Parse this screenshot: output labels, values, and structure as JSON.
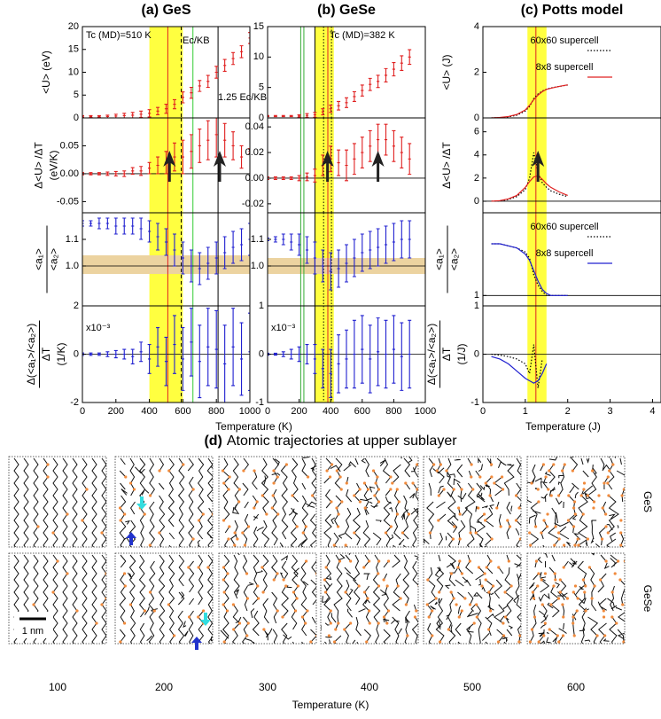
{
  "chart_data": [
    {
      "type": "errorbar",
      "title": "(a) GeS",
      "ylabel": [
        "<U> (eV)"
      ],
      "color": "#e02020",
      "x": [
        0,
        50,
        100,
        150,
        200,
        250,
        300,
        350,
        400,
        450,
        500,
        550,
        600,
        650,
        700,
        750,
        800,
        850,
        900,
        950,
        1000
      ],
      "values": [
        0.3,
        0.3,
        0.3,
        0.3,
        0.4,
        0.5,
        0.6,
        0.8,
        1.0,
        1.5,
        2.0,
        3.0,
        4.5,
        5.5,
        7,
        8,
        10,
        11.5,
        13,
        14.5,
        17.5
      ],
      "errors": [
        0.2,
        0.2,
        0.2,
        0.3,
        0.4,
        0.5,
        0.6,
        0.7,
        0.8,
        0.8,
        1,
        1,
        1.2,
        1.2,
        1.2,
        1.3,
        1.3,
        1.3,
        1.3,
        1.3,
        1.2
      ],
      "xlim": [
        0,
        1000
      ],
      "ylim": [
        0,
        20
      ],
      "yticks": [
        0,
        5,
        10,
        15,
        20
      ],
      "band": [
        400,
        600
      ],
      "lines": [
        {
          "x": 510,
          "color": "#e02020",
          "style": "solid"
        },
        {
          "x": 590,
          "color": "#000000",
          "style": "dashed"
        },
        {
          "x": 660,
          "color": "#33cc33",
          "style": "solid"
        },
        {
          "x": 810,
          "color": "#000000",
          "style": "solid"
        }
      ],
      "annotations": [
        {
          "text": "Tc (MD)=510 K",
          "color": "#e02020"
        },
        {
          "text": "Ec/KB",
          "color": "#33bb33"
        },
        {
          "text": "1.25 Ec/KB",
          "color": "#000000"
        }
      ]
    },
    {
      "type": "errorbar",
      "ylabel": [
        "Δ<U> /ΔT",
        "(eV/K)"
      ],
      "color": "#e02020",
      "x": [
        0,
        50,
        100,
        150,
        200,
        250,
        300,
        350,
        400,
        450,
        500,
        550,
        600,
        650,
        700,
        750,
        800,
        850,
        900,
        950,
        1000
      ],
      "values": [
        0,
        0,
        0,
        0,
        0,
        0,
        0.005,
        0.005,
        0.01,
        0.015,
        0.02,
        0.03,
        0.03,
        0.04,
        0.05,
        0.06,
        0.07,
        0.06,
        0.05,
        0.03,
        0.04
      ],
      "errors": [
        0.002,
        0.002,
        0.002,
        0.003,
        0.004,
        0.005,
        0.006,
        0.008,
        0.01,
        0.015,
        0.02,
        0.025,
        0.03,
        0.03,
        0.03,
        0.035,
        0.04,
        0.03,
        0.025,
        0.02,
        0.005
      ],
      "xlim": [
        0,
        1000
      ],
      "ylim": [
        -0.07,
        0.1
      ],
      "yticks": [
        {
          "value": -0.05,
          "label": "-0.05"
        },
        {
          "value": 0,
          "label": "0.00"
        },
        {
          "value": 0.05,
          "label": "0.05"
        }
      ],
      "hline": 0,
      "arrows": [
        520,
        820
      ]
    },
    {
      "type": "errorbar",
      "ylabel": [
        "<a₁>",
        "<a₂>"
      ],
      "ylabel_fraction": true,
      "color": "#2020d0",
      "x": [
        0,
        50,
        100,
        150,
        200,
        250,
        300,
        350,
        400,
        450,
        500,
        550,
        600,
        650,
        700,
        750,
        800,
        850,
        900,
        950,
        1000
      ],
      "values": [
        1.16,
        1.16,
        1.16,
        1.16,
        1.15,
        1.15,
        1.15,
        1.14,
        1.13,
        1.11,
        1.09,
        1.06,
        1.03,
        1.0,
        0.99,
        1.01,
        1.03,
        1.05,
        1.07,
        1.08,
        1.1
      ],
      "errors": [
        0.01,
        0.01,
        0.02,
        0.02,
        0.03,
        0.03,
        0.03,
        0.04,
        0.04,
        0.05,
        0.05,
        0.06,
        0.06,
        0.06,
        0.06,
        0.06,
        0.06,
        0.06,
        0.06,
        0.06,
        0.06
      ],
      "xlim": [
        0,
        1000
      ],
      "ylim": [
        0.85,
        1.2
      ],
      "yticks": [
        {
          "value": 1,
          "label": "1.0"
        },
        1.1
      ],
      "hline": 1,
      "band_y": [
        0.97,
        1.04
      ]
    },
    {
      "type": "errorbar",
      "ylabel": [
        "Δ(<a₁>/<a₂>)",
        "ΔT",
        "(1/K)"
      ],
      "ylabel_fraction": true,
      "color": "#2020d0",
      "x": [
        0,
        50,
        100,
        150,
        200,
        250,
        300,
        350,
        400,
        450,
        500,
        550,
        600,
        650,
        700,
        750,
        800,
        850,
        900,
        950,
        1000
      ],
      "values": [
        0,
        0,
        0,
        0,
        0,
        0,
        -0.1,
        0.1,
        -0.2,
        0.3,
        -0.3,
        0.4,
        -0.2,
        0.5,
        -0.3,
        0.3,
        0.2,
        -0.4,
        0.3,
        -0.2,
        0.1
      ],
      "errors": [
        0.05,
        0.05,
        0.05,
        0.1,
        0.15,
        0.2,
        0.3,
        0.4,
        0.6,
        0.8,
        1,
        1.2,
        1.3,
        1.4,
        1.5,
        1.6,
        1.6,
        1.6,
        1.6,
        1.5,
        1.6
      ],
      "xlim": [
        0,
        1000
      ],
      "ylim": [
        -2,
        2
      ],
      "yticks": [
        -2,
        0,
        2
      ],
      "xticks": [
        0,
        200,
        400,
        600,
        800,
        1000
      ],
      "hline": 0,
      "annotations": [
        {
          "text": "x10⁻³",
          "color": "#000000"
        }
      ],
      "xlabel": "Temperature (K)"
    },
    {
      "type": "errorbar",
      "title": "(b) GeSe",
      "color": "#e02020",
      "x": [
        0,
        50,
        100,
        150,
        200,
        250,
        300,
        350,
        400,
        450,
        500,
        550,
        600,
        650,
        700,
        750,
        800,
        850,
        900
      ],
      "values": [
        0.3,
        0.3,
        0.3,
        0.3,
        0.3,
        0.4,
        0.5,
        1.0,
        1.5,
        2.0,
        2.5,
        3.5,
        4.5,
        5.5,
        6,
        7,
        8,
        9,
        10
      ],
      "errors": [
        0.1,
        0.1,
        0.1,
        0.1,
        0.2,
        0.3,
        0.4,
        0.5,
        0.6,
        0.7,
        0.8,
        0.8,
        0.9,
        1,
        1,
        1.1,
        1.1,
        1.2,
        1.2
      ],
      "xlim": [
        0,
        1000
      ],
      "ylim": [
        0,
        15
      ],
      "yticks": [
        0,
        5,
        10,
        15
      ],
      "band": [
        300,
        420
      ],
      "lines": [
        {
          "x": 210,
          "color": "#33aa33",
          "style": "solid"
        },
        {
          "x": 230,
          "color": "#33aa33",
          "style": "solid"
        },
        {
          "x": 300,
          "color": "#000000",
          "style": "solid"
        },
        {
          "x": 355,
          "color": "#000000",
          "style": "dotted"
        },
        {
          "x": 382,
          "color": "#e02020",
          "style": "solid"
        },
        {
          "x": 405,
          "color": "#000000",
          "style": "dotted"
        }
      ],
      "annotations": [
        {
          "text": "Tc (MD)=382 K",
          "color": "#e02020"
        }
      ]
    },
    {
      "type": "errorbar",
      "color": "#e02020",
      "x": [
        0,
        50,
        100,
        150,
        200,
        250,
        300,
        350,
        400,
        450,
        500,
        550,
        600,
        650,
        700,
        750,
        800,
        850,
        900
      ],
      "values": [
        0,
        0,
        0,
        0,
        0,
        0.001,
        0.002,
        0.01,
        0.015,
        0.012,
        0.01,
        0.015,
        0.02,
        0.025,
        0.03,
        0.03,
        0.025,
        0.02,
        0.015
      ],
      "errors": [
        0.001,
        0.001,
        0.001,
        0.001,
        0.002,
        0.003,
        0.005,
        0.008,
        0.01,
        0.01,
        0.012,
        0.012,
        0.012,
        0.012,
        0.012,
        0.012,
        0.012,
        0.012,
        0.012
      ],
      "xlim": [
        0,
        1000
      ],
      "ylim": [
        -0.027,
        0.047
      ],
      "yticks": [
        {
          "value": -0.02,
          "label": "-0.02"
        },
        {
          "value": 0,
          "label": "0.00"
        },
        {
          "value": 0.02,
          "label": "0.02"
        },
        {
          "value": 0.04,
          "label": "0.04"
        }
      ],
      "hline": 0,
      "arrows": [
        380,
        700
      ]
    },
    {
      "type": "errorbar",
      "color": "#2020d0",
      "x": [
        0,
        50,
        100,
        150,
        200,
        250,
        300,
        350,
        400,
        450,
        500,
        550,
        600,
        650,
        700,
        750,
        800,
        850,
        900
      ],
      "values": [
        1.1,
        1.1,
        1.1,
        1.09,
        1.08,
        1.06,
        1.03,
        1.0,
        0.98,
        0.99,
        1.01,
        1.03,
        1.05,
        1.06,
        1.07,
        1.08,
        1.09,
        1.1,
        1.1
      ],
      "errors": [
        0.005,
        0.01,
        0.02,
        0.03,
        0.04,
        0.05,
        0.06,
        0.06,
        0.07,
        0.07,
        0.07,
        0.07,
        0.07,
        0.07,
        0.07,
        0.07,
        0.07,
        0.07,
        0.07
      ],
      "xlim": [
        0,
        1000
      ],
      "ylim": [
        0.85,
        1.2
      ],
      "yticks": [
        {
          "value": 1,
          "label": "1.0"
        },
        1.1
      ],
      "hline": 1,
      "band_y": [
        0.97,
        1.03
      ]
    },
    {
      "type": "errorbar",
      "color": "#2020d0",
      "x": [
        0,
        50,
        100,
        150,
        200,
        250,
        300,
        350,
        400,
        450,
        500,
        550,
        600,
        650,
        700,
        750,
        800,
        850,
        900
      ],
      "values": [
        0,
        0,
        0,
        0,
        0,
        0,
        -0.1,
        -0.3,
        -0.4,
        -0.2,
        -0.1,
        0,
        0.1,
        -0.1,
        0.05,
        0,
        0.1,
        -0.05,
        0
      ],
      "errors": [
        0.02,
        0.02,
        0.05,
        0.1,
        0.15,
        0.2,
        0.3,
        0.4,
        0.5,
        0.6,
        0.6,
        0.7,
        0.7,
        0.7,
        0.7,
        0.7,
        0.7,
        0.7,
        0.7
      ],
      "xlim": [
        0,
        1000
      ],
      "ylim": [
        -1,
        1
      ],
      "yticks": [
        -1,
        0,
        1
      ],
      "xticks": [
        0,
        200,
        400,
        600,
        800,
        1000
      ],
      "hline": 0,
      "annotations": [
        {
          "text": "x10⁻³",
          "color": "#000000"
        }
      ]
    },
    {
      "type": "line",
      "title": "(c) Potts model",
      "ylabel": [
        "<U> (J)"
      ],
      "x": [
        0.2,
        0.4,
        0.6,
        0.8,
        1.0,
        1.1,
        1.2,
        1.3,
        1.4,
        1.5,
        1.6,
        1.8,
        2.0
      ],
      "series": [
        {
          "name": "60x60 supercell",
          "color": "#000000",
          "style": "dotted",
          "values": [
            0,
            0.01,
            0.04,
            0.12,
            0.3,
            0.5,
            0.85,
            1.05,
            1.18,
            1.26,
            1.31,
            1.38,
            1.44
          ]
        },
        {
          "name": "8x8 supercell",
          "color": "#e02020",
          "style": "solid",
          "values": [
            0,
            0.02,
            0.06,
            0.15,
            0.35,
            0.55,
            0.8,
            1.0,
            1.15,
            1.25,
            1.3,
            1.38,
            1.45
          ]
        }
      ],
      "xlim": [
        0,
        4.2
      ],
      "ylim": [
        0,
        4
      ],
      "yticks": [
        0,
        2,
        4
      ],
      "legend": true,
      "band": [
        1.05,
        1.5
      ],
      "lines": [
        {
          "x": 1.25,
          "color": "#e02020",
          "style": "solid"
        }
      ]
    },
    {
      "type": "line",
      "ylabel": [
        "Δ<U> /ΔT"
      ],
      "x": [
        0.2,
        0.4,
        0.6,
        0.8,
        1.0,
        1.1,
        1.2,
        1.3,
        1.4,
        1.5,
        1.6,
        1.8,
        2.0
      ],
      "series": [
        {
          "color": "#000000",
          "style": "dotted",
          "values": [
            0,
            0.03,
            0.15,
            0.4,
            1.0,
            2.0,
            4.2,
            2.5,
            1.6,
            1.2,
            0.9,
            0.6,
            0.4
          ]
        },
        {
          "color": "#e02020",
          "style": "solid",
          "values": [
            0,
            0.05,
            0.2,
            0.5,
            1.2,
            1.7,
            2.1,
            2.2,
            1.9,
            1.5,
            1.2,
            0.8,
            0.5
          ]
        }
      ],
      "xlim": [
        0,
        4.2
      ],
      "ylim": [
        -1,
        7.2
      ],
      "yticks": [
        0,
        2,
        4,
        6
      ],
      "hline": 0,
      "arrows": [
        1.3
      ]
    },
    {
      "type": "line",
      "ylabel": [
        "<a₁>",
        "<a₂>"
      ],
      "ylabel_fraction": true,
      "x": [
        0.2,
        0.4,
        0.6,
        0.8,
        1.0,
        1.1,
        1.2,
        1.3,
        1.4,
        1.5,
        1.6,
        1.8,
        2.0
      ],
      "series": [
        {
          "name": "60x60 supercell",
          "color": "#000000",
          "style": "dotted",
          "values": [
            1.25,
            1.25,
            1.24,
            1.23,
            1.21,
            1.18,
            1.1,
            1.05,
            1.02,
            1.0,
            1.0,
            1.0,
            1.0
          ]
        },
        {
          "name": "8x8 supercell",
          "color": "#2020d0",
          "style": "solid",
          "values": [
            1.25,
            1.25,
            1.24,
            1.23,
            1.2,
            1.17,
            1.12,
            1.07,
            1.03,
            1.01,
            1.0,
            1.0,
            1.0
          ]
        }
      ],
      "xlim": [
        0,
        4.2
      ],
      "ylim": [
        0.95,
        1.4
      ],
      "yticks": [
        1
      ],
      "legend": true,
      "hline": 1
    },
    {
      "type": "line",
      "ylabel": [
        "Δ(<a₁>/<a₂>)",
        "ΔT",
        "(1/J)"
      ],
      "ylabel_fraction": true,
      "x": [
        0.2,
        0.4,
        0.6,
        0.8,
        1.0,
        1.1,
        1.2,
        1.3,
        1.4,
        1.5,
        1.6,
        1.8,
        2.0
      ],
      "series": [
        {
          "color": "#000000",
          "style": "dotted",
          "values": [
            0,
            -0.02,
            -0.05,
            -0.1,
            -0.2,
            -0.4,
            0.2,
            -0.7,
            -0.1,
            null,
            null,
            null,
            null
          ]
        },
        {
          "color": "#2020d0",
          "style": "solid",
          "values": [
            -0.05,
            -0.1,
            -0.2,
            -0.35,
            -0.5,
            -0.55,
            -0.6,
            -0.55,
            -0.4,
            -0.2,
            null,
            null,
            null
          ]
        }
      ],
      "xlim": [
        0,
        4.2
      ],
      "ylim": [
        -1,
        1
      ],
      "yticks": [
        -1,
        0,
        1
      ],
      "xticks": [
        0,
        1,
        2,
        3,
        4
      ],
      "hline": 0,
      "xlabel": "Temperature (J)"
    }
  ],
  "trajectories": {
    "title_label": "(d)",
    "title": "Atomic trajectories at upper sublayer",
    "rows": [
      "GeS",
      "GeSe"
    ],
    "columns": [
      100,
      200,
      300,
      400,
      500,
      600
    ],
    "scale_bar": "1 nm",
    "xlabel": "Temperature (K)"
  }
}
